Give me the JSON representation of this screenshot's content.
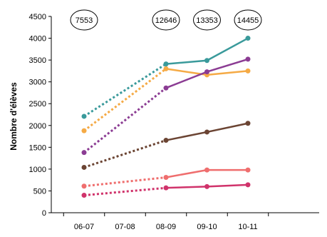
{
  "chart_data": {
    "type": "line",
    "title": "",
    "xlabel": "",
    "ylabel": "Nombre d'élèves",
    "categories": [
      "06-07",
      "07-08",
      "08-09",
      "09-10",
      "10-11"
    ],
    "ylim": [
      0,
      4500
    ],
    "yticks": [
      0,
      500,
      1000,
      1500,
      2000,
      2500,
      3000,
      3500,
      4000,
      4500
    ],
    "grid": false,
    "legend": "none",
    "dashed_segment": {
      "from": "06-07",
      "to": "08-09"
    },
    "totals": [
      {
        "category": "06-07",
        "value": "7553"
      },
      {
        "category": "08-09",
        "value": "12646"
      },
      {
        "category": "09-10",
        "value": "13353"
      },
      {
        "category": "10-11",
        "value": "14455"
      }
    ],
    "series": [
      {
        "color": "#3a9a9b",
        "values": [
          2210,
          null,
          3410,
          3490,
          4000
        ]
      },
      {
        "color": "#f5aa45",
        "values": [
          1880,
          null,
          3300,
          3160,
          3250
        ]
      },
      {
        "color": "#8b3c93",
        "values": [
          1380,
          null,
          2860,
          3230,
          3520
        ]
      },
      {
        "color": "#6b4433",
        "values": [
          1040,
          null,
          1660,
          1850,
          2050
        ]
      },
      {
        "color": "#ef6e6e",
        "values": [
          610,
          null,
          810,
          980,
          980
        ]
      },
      {
        "color": "#d0336b",
        "values": [
          400,
          null,
          570,
          600,
          640
        ]
      }
    ]
  }
}
